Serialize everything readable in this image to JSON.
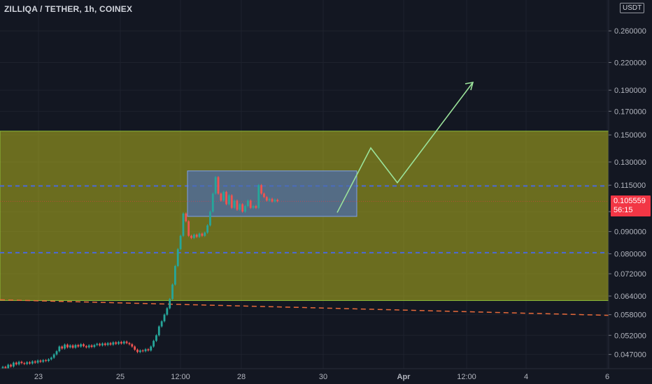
{
  "chart_data": {
    "type": "candlestick",
    "title": "ZILLIQA / TETHER, 1h, COINEX",
    "currency": "USDT",
    "last_price": "0.105559",
    "countdown": "56:15",
    "y_scale": "log",
    "y_ticks": [
      "0.260000",
      "0.220000",
      "0.190000",
      "0.170000",
      "0.150000",
      "0.130000",
      "0.115000",
      "0.100000",
      "0.090000",
      "0.080000",
      "0.072000",
      "0.064000",
      "0.058000",
      "0.052000",
      "0.047000"
    ],
    "x_ticks": [
      "23",
      "25",
      "12:00",
      "28",
      "30",
      "Apr",
      "12:00",
      "4",
      "6"
    ],
    "grid": true,
    "colors": {
      "up": "#26a69a",
      "down": "#ef5350",
      "zone_fill": "#b5b51e",
      "box_fill": "#4a6cb0",
      "projection": "#9be39b",
      "trendline": "#e86a3a",
      "dashed_level": "#4a68d8",
      "price_tag": "#f23645"
    },
    "zones": [
      {
        "name": "range",
        "from": 0.0625,
        "to": 0.153
      },
      {
        "name": "consolidation",
        "from": 0.0975,
        "to": 0.124
      }
    ],
    "levels": [
      0.1145,
      0.0805
    ],
    "projection_path": [
      0.0995,
      0.14,
      0.1165,
      0.198
    ],
    "trendline": [
      0.0625,
      0.0578
    ],
    "candles": [
      {
        "o": 0.043,
        "c": 0.044
      },
      {
        "o": 0.044,
        "c": 0.0436
      },
      {
        "o": 0.0436,
        "c": 0.0445
      },
      {
        "o": 0.0445,
        "c": 0.0441
      },
      {
        "o": 0.0441,
        "c": 0.045
      },
      {
        "o": 0.045,
        "c": 0.0446
      },
      {
        "o": 0.0446,
        "c": 0.0452
      },
      {
        "o": 0.0452,
        "c": 0.0449
      },
      {
        "o": 0.0449,
        "c": 0.0447
      },
      {
        "o": 0.0447,
        "c": 0.0451
      },
      {
        "o": 0.0451,
        "c": 0.0448
      },
      {
        "o": 0.0448,
        "c": 0.0453
      },
      {
        "o": 0.0453,
        "c": 0.045
      },
      {
        "o": 0.045,
        "c": 0.0455
      },
      {
        "o": 0.0455,
        "c": 0.0452
      },
      {
        "o": 0.0452,
        "c": 0.0456
      },
      {
        "o": 0.0456,
        "c": 0.0454
      },
      {
        "o": 0.0454,
        "c": 0.0458
      },
      {
        "o": 0.0458,
        "c": 0.0462
      },
      {
        "o": 0.0462,
        "c": 0.047
      },
      {
        "o": 0.047,
        "c": 0.0478
      },
      {
        "o": 0.0478,
        "c": 0.049
      },
      {
        "o": 0.049,
        "c": 0.0485
      },
      {
        "o": 0.0485,
        "c": 0.0495
      },
      {
        "o": 0.0495,
        "c": 0.0488
      },
      {
        "o": 0.0488,
        "c": 0.0493
      },
      {
        "o": 0.0493,
        "c": 0.0487
      },
      {
        "o": 0.0487,
        "c": 0.0494
      },
      {
        "o": 0.0494,
        "c": 0.049
      },
      {
        "o": 0.049,
        "c": 0.0496
      },
      {
        "o": 0.0496,
        "c": 0.0491
      },
      {
        "o": 0.0491,
        "c": 0.0488
      },
      {
        "o": 0.0488,
        "c": 0.0493
      },
      {
        "o": 0.0493,
        "c": 0.0489
      },
      {
        "o": 0.0489,
        "c": 0.0494
      },
      {
        "o": 0.0494,
        "c": 0.0497
      },
      {
        "o": 0.0497,
        "c": 0.0493
      },
      {
        "o": 0.0493,
        "c": 0.0498
      },
      {
        "o": 0.0498,
        "c": 0.0494
      },
      {
        "o": 0.0494,
        "c": 0.0499
      },
      {
        "o": 0.0499,
        "c": 0.0495
      },
      {
        "o": 0.0495,
        "c": 0.0501
      },
      {
        "o": 0.0501,
        "c": 0.0497
      },
      {
        "o": 0.0497,
        "c": 0.0502
      },
      {
        "o": 0.0502,
        "c": 0.0498
      },
      {
        "o": 0.0498,
        "c": 0.0503
      },
      {
        "o": 0.0503,
        "c": 0.0499
      },
      {
        "o": 0.0499,
        "c": 0.0496
      },
      {
        "o": 0.0496,
        "c": 0.049
      },
      {
        "o": 0.049,
        "c": 0.0482
      },
      {
        "o": 0.0482,
        "c": 0.0476
      },
      {
        "o": 0.0476,
        "c": 0.048
      },
      {
        "o": 0.048,
        "c": 0.0478
      },
      {
        "o": 0.0478,
        "c": 0.0483
      },
      {
        "o": 0.0483,
        "c": 0.048
      },
      {
        "o": 0.048,
        "c": 0.049
      },
      {
        "o": 0.049,
        "c": 0.0505
      },
      {
        "o": 0.0505,
        "c": 0.052
      },
      {
        "o": 0.052,
        "c": 0.0545
      },
      {
        "o": 0.0545,
        "c": 0.056
      },
      {
        "o": 0.056,
        "c": 0.058
      },
      {
        "o": 0.058,
        "c": 0.06
      },
      {
        "o": 0.06,
        "c": 0.063
      },
      {
        "o": 0.063,
        "c": 0.068
      },
      {
        "o": 0.068,
        "c": 0.075
      },
      {
        "o": 0.075,
        "c": 0.082
      },
      {
        "o": 0.082,
        "c": 0.088
      },
      {
        "o": 0.088,
        "c": 0.099
      },
      {
        "o": 0.099,
        "c": 0.095
      },
      {
        "o": 0.095,
        "c": 0.088
      },
      {
        "o": 0.088,
        "c": 0.087
      },
      {
        "o": 0.087,
        "c": 0.0885
      },
      {
        "o": 0.0885,
        "c": 0.0875
      },
      {
        "o": 0.0875,
        "c": 0.089
      },
      {
        "o": 0.089,
        "c": 0.088
      },
      {
        "o": 0.088,
        "c": 0.0895
      },
      {
        "o": 0.0895,
        "c": 0.093
      },
      {
        "o": 0.093,
        "c": 0.1
      },
      {
        "o": 0.1,
        "c": 0.11
      },
      {
        "o": 0.11,
        "c": 0.12
      },
      {
        "o": 0.12,
        "c": 0.11
      },
      {
        "o": 0.11,
        "c": 0.106
      },
      {
        "o": 0.106,
        "c": 0.111
      },
      {
        "o": 0.111,
        "c": 0.104
      },
      {
        "o": 0.104,
        "c": 0.109
      },
      {
        "o": 0.109,
        "c": 0.102
      },
      {
        "o": 0.102,
        "c": 0.106
      },
      {
        "o": 0.106,
        "c": 0.101
      },
      {
        "o": 0.101,
        "c": 0.104
      },
      {
        "o": 0.104,
        "c": 0.1
      },
      {
        "o": 0.1,
        "c": 0.103
      },
      {
        "o": 0.103,
        "c": 0.106
      },
      {
        "o": 0.106,
        "c": 0.102
      },
      {
        "o": 0.102,
        "c": 0.103
      },
      {
        "o": 0.103,
        "c": 0.102
      },
      {
        "o": 0.102,
        "c": 0.115
      },
      {
        "o": 0.115,
        "c": 0.11
      },
      {
        "o": 0.11,
        "c": 0.108
      },
      {
        "o": 0.108,
        "c": 0.106
      },
      {
        "o": 0.106,
        "c": 0.107
      },
      {
        "o": 0.107,
        "c": 0.1055
      },
      {
        "o": 0.1055,
        "c": 0.1065
      },
      {
        "o": 0.1065,
        "c": 0.1056
      }
    ]
  }
}
